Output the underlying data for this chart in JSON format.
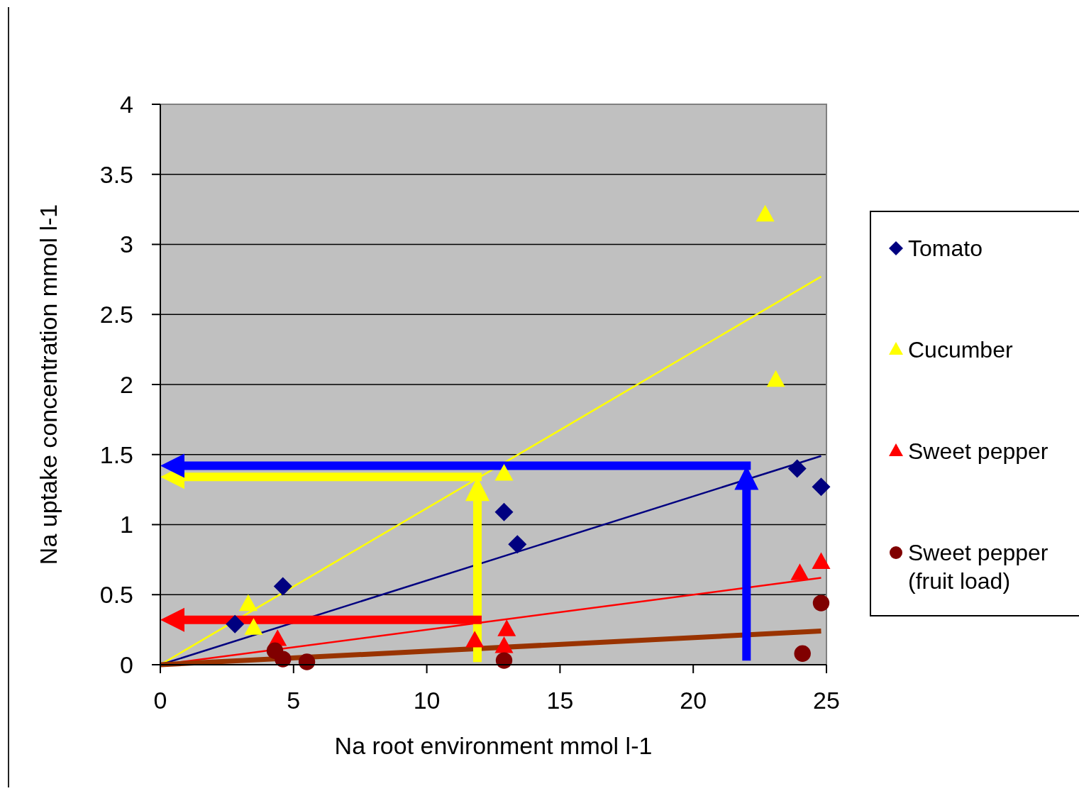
{
  "chart_data": {
    "type": "scatter",
    "xlabel": "Na root environment mmol l-1",
    "ylabel": "Na uptake concentration mmol l-1",
    "xlim": [
      0,
      25
    ],
    "xticks": [
      0,
      5,
      10,
      15,
      20,
      25
    ],
    "ylim": [
      0,
      4
    ],
    "yticks": [
      0,
      0.5,
      1,
      1.5,
      2,
      2.5,
      3,
      3.5,
      4
    ],
    "grid": "y",
    "legend": "right",
    "series": [
      {
        "name": "Tomato",
        "color": "#000080",
        "marker": "diamond",
        "x": [
          2.8,
          4.6,
          12.9,
          13.4,
          23.9,
          24.8
        ],
        "values": [
          0.29,
          0.56,
          1.09,
          0.86,
          1.4,
          1.27
        ]
      },
      {
        "name": "Cucumber",
        "color": "#ffff00",
        "marker": "triangle",
        "x": [
          3.3,
          3.5,
          12.9,
          22.7,
          23.1
        ],
        "values": [
          0.43,
          0.26,
          1.36,
          3.21,
          2.03
        ]
      },
      {
        "name": "Sweet pepper",
        "color": "#ff0000",
        "marker": "triangle",
        "x": [
          4.4,
          11.8,
          12.9,
          13,
          24,
          24.8
        ],
        "values": [
          0.18,
          0.17,
          0.13,
          0.25,
          0.65,
          0.73
        ]
      },
      {
        "name": "Sweet pepper (fruit load)",
        "color": "#800000",
        "marker": "circle",
        "x": [
          4.3,
          4.6,
          5.5,
          12.9,
          24.1,
          24.8
        ],
        "values": [
          0.1,
          0.04,
          0.02,
          0.03,
          0.08,
          0.44
        ]
      },
      {
        "type": "line",
        "color": "#ffff00",
        "x": [
          0,
          24.8
        ],
        "values": [
          0,
          2.77
        ]
      },
      {
        "type": "line",
        "color": "#000080",
        "x": [
          0,
          24.8
        ],
        "values": [
          0,
          1.49
        ]
      },
      {
        "type": "line",
        "color": "#ff0000",
        "x": [
          0,
          24.8
        ],
        "values": [
          0,
          0.62
        ]
      },
      {
        "type": "line",
        "color": "#993300",
        "x": [
          0,
          24.8
        ],
        "values": [
          0,
          0.24
        ]
      }
    ]
  }
}
